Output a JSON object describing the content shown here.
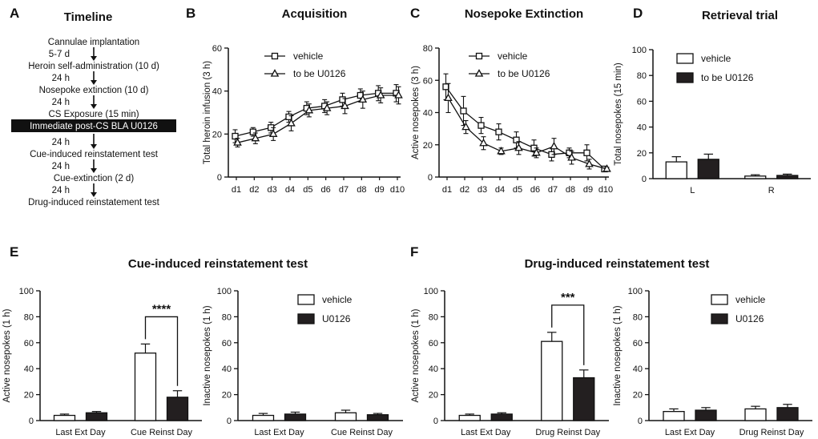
{
  "letters": {
    "a": "A",
    "b": "B",
    "c": "C",
    "d": "D",
    "e": "E",
    "f": "F"
  },
  "timeline": {
    "title": "Timeline",
    "steps": [
      {
        "text": "Cannulae implantation",
        "style": "plain"
      },
      {
        "text": "5-7 d",
        "style": "interval"
      },
      {
        "text": "Heroin self-administration (10 d)",
        "style": "plain"
      },
      {
        "text": "24 h",
        "style": "interval"
      },
      {
        "text": "Nosepoke extinction (10 d)",
        "style": "plain"
      },
      {
        "text": "24 h",
        "style": "interval"
      },
      {
        "text": "CS Exposure (15 min)",
        "style": "plain"
      },
      {
        "text": "Immediate post-CS  BLA U0126",
        "style": "highlight"
      },
      {
        "text": "24 h",
        "style": "interval"
      },
      {
        "text": "Cue-induced reinstatement test",
        "style": "plain"
      },
      {
        "text": "24 h",
        "style": "interval"
      },
      {
        "text": "Cue-extinction (2 d)",
        "style": "plain"
      },
      {
        "text": "24 h",
        "style": "interval"
      },
      {
        "text": "Drug-induced reinstatement test",
        "style": "plain"
      }
    ]
  },
  "colors": {
    "vehicle": "#ffffff",
    "drug": "#231f20",
    "ink": "#111111"
  },
  "section_titles": {
    "e": "Cue-induced reinstatement test",
    "f": "Drug-induced reinstatement test"
  },
  "chart_data": [
    {
      "panel": "B",
      "type": "line",
      "title": "Acquisition",
      "xlabel": "",
      "ylabel": "Total heroin infusion (3 h)",
      "ylim": [
        0,
        60
      ],
      "yticks": [
        0,
        20,
        40,
        60
      ],
      "categories": [
        "d1",
        "d2",
        "d3",
        "d4",
        "d5",
        "d6",
        "d7",
        "d8",
        "d9",
        "d10"
      ],
      "series": [
        {
          "name": "vehicle",
          "marker": "square",
          "values": [
            19,
            21,
            23,
            28,
            32,
            33,
            36,
            38,
            39,
            39
          ],
          "errors": [
            3,
            2,
            2.5,
            2.5,
            3,
            3,
            3,
            3,
            3.5,
            4
          ]
        },
        {
          "name": "to be U0126",
          "marker": "triangle",
          "values": [
            16,
            18,
            20,
            25,
            31,
            32,
            33,
            36,
            38,
            38
          ],
          "errors": [
            2,
            2.5,
            3,
            3.5,
            3,
            3,
            3.5,
            4,
            3.5,
            4
          ]
        }
      ],
      "legend": "top-left"
    },
    {
      "panel": "C",
      "type": "line",
      "title": "Nosepoke Extinction",
      "xlabel": "",
      "ylabel": "Active nosepokes (3 h)",
      "ylim": [
        0,
        80
      ],
      "yticks": [
        0,
        20,
        40,
        60,
        80
      ],
      "categories": [
        "d1",
        "d2",
        "d3",
        "d4",
        "d5",
        "d6",
        "d7",
        "d8",
        "d9",
        "d10"
      ],
      "series": [
        {
          "name": "vehicle",
          "marker": "square",
          "values": [
            56,
            41,
            32,
            28,
            23,
            18,
            14,
            15,
            15,
            5
          ],
          "errors": [
            8,
            9,
            5,
            5,
            5,
            5,
            4,
            3,
            5,
            1
          ]
        },
        {
          "name": "to be U0126",
          "marker": "triangle",
          "values": [
            49,
            31,
            21,
            16,
            18,
            15,
            19,
            12,
            8,
            5
          ],
          "errors": [
            9,
            4,
            4,
            2,
            4,
            3,
            5,
            4,
            3,
            1
          ]
        }
      ],
      "legend": "top-right"
    },
    {
      "panel": "D",
      "type": "bar",
      "title": "Retrieval trial",
      "xlabel": "",
      "ylabel": "Total nosepokes (15 min)",
      "ylim": [
        0,
        100
      ],
      "yticks": [
        0,
        20,
        40,
        60,
        80,
        100
      ],
      "categories": [
        "L",
        "R"
      ],
      "series": [
        {
          "name": "vehicle",
          "values": [
            13,
            2
          ],
          "errors": [
            4,
            1
          ]
        },
        {
          "name": "to be U0126",
          "values": [
            15,
            2.5
          ],
          "errors": [
            4,
            1
          ]
        }
      ],
      "legend": "top-left"
    },
    {
      "panel": "E-left",
      "type": "bar",
      "title": "",
      "xlabel": "",
      "ylabel": "Active nosepokes (1 h)",
      "ylim": [
        0,
        100
      ],
      "yticks": [
        0,
        20,
        40,
        60,
        80,
        100
      ],
      "categories": [
        "Last Ext Day",
        "Cue Reinst Day"
      ],
      "series": [
        {
          "name": "vehicle",
          "values": [
            4,
            52
          ],
          "errors": [
            1,
            7
          ]
        },
        {
          "name": "U0126",
          "values": [
            6,
            18
          ],
          "errors": [
            1,
            5
          ]
        }
      ],
      "significance": {
        "category": 1,
        "label": "****"
      }
    },
    {
      "panel": "E-right",
      "type": "bar",
      "title": "",
      "xlabel": "",
      "ylabel": "Inactive nosepokes (1 h)",
      "ylim": [
        0,
        100
      ],
      "yticks": [
        0,
        20,
        40,
        60,
        80,
        100
      ],
      "categories": [
        "Last Ext Day",
        "Cue Reinst Day"
      ],
      "series": [
        {
          "name": "vehicle",
          "values": [
            4,
            6
          ],
          "errors": [
            1.5,
            2
          ]
        },
        {
          "name": "U0126",
          "values": [
            5,
            4.5
          ],
          "errors": [
            1.5,
            1
          ]
        }
      ],
      "legend": "top-right"
    },
    {
      "panel": "F-left",
      "type": "bar",
      "title": "",
      "xlabel": "",
      "ylabel": "Active nosepokes (1 h)",
      "ylim": [
        0,
        100
      ],
      "yticks": [
        0,
        20,
        40,
        60,
        80,
        100
      ],
      "categories": [
        "Last Ext Day",
        "Drug Reinst Day"
      ],
      "series": [
        {
          "name": "vehicle",
          "values": [
            4,
            61
          ],
          "errors": [
            1,
            7
          ]
        },
        {
          "name": "U0126",
          "values": [
            5,
            33
          ],
          "errors": [
            1,
            6
          ]
        }
      ],
      "significance": {
        "category": 1,
        "label": "***"
      }
    },
    {
      "panel": "F-right",
      "type": "bar",
      "title": "",
      "xlabel": "",
      "ylabel": "Inactive nosepokes (1 h)",
      "ylim": [
        0,
        100
      ],
      "yticks": [
        0,
        20,
        40,
        60,
        80,
        100
      ],
      "categories": [
        "Last Ext Day",
        "Drug Reinst Day"
      ],
      "series": [
        {
          "name": "vehicle",
          "values": [
            7,
            9
          ],
          "errors": [
            2,
            2
          ]
        },
        {
          "name": "U0126",
          "values": [
            8,
            10
          ],
          "errors": [
            2,
            2.5
          ]
        }
      ],
      "legend": "top-right"
    }
  ]
}
